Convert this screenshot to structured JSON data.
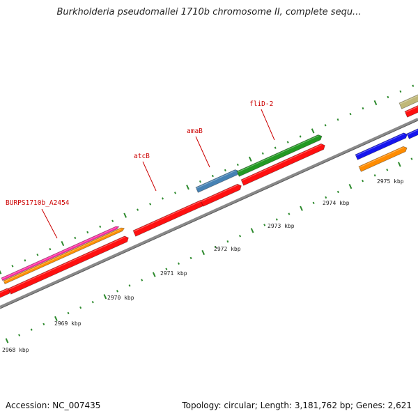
{
  "title": "Burkholderia pseudomallei 1710b chromosome II, complete sequ...",
  "footer": {
    "accession": "Accession: NC_007435",
    "summary": "Topology: circular; Length: 3,181,762 bp; Genes: 2,621"
  },
  "colors": {
    "backbone": "#8a8a8a",
    "tick": "#2d8a2d",
    "label_red": "#cc0000"
  },
  "kbp_labels": [
    {
      "text": "2968 kbp",
      "kbp": 2968
    },
    {
      "text": "2969 kbp",
      "kbp": 2969
    },
    {
      "text": "2970 kbp",
      "kbp": 2970
    },
    {
      "text": "2971 kbp",
      "kbp": 2971
    },
    {
      "text": "2972 kbp",
      "kbp": 2972
    },
    {
      "text": "2973 kbp",
      "kbp": 2973
    },
    {
      "text": "2974 kbp",
      "kbp": 2974
    },
    {
      "text": "2975 kbp",
      "kbp": 2975
    }
  ],
  "genes": [
    {
      "name": "BURPS1710b_A2454",
      "label": "BURPS1710b_A2454"
    },
    {
      "name": "atcB",
      "label": "atcB"
    },
    {
      "name": "amaB",
      "label": "amaB"
    },
    {
      "name": "fliD-2",
      "label": "fliD-2"
    }
  ],
  "features": [
    {
      "color": "#ff1010",
      "track": "inner"
    },
    {
      "color": "#ff1010",
      "track": "inner"
    },
    {
      "color": "#ff1010",
      "track": "inner"
    },
    {
      "color": "#ff1010",
      "track": "inner"
    },
    {
      "color": "#ff1010",
      "track": "inner"
    },
    {
      "color": "#ff1010",
      "track": "inner"
    },
    {
      "color": "#ff9000",
      "track": "outer"
    },
    {
      "color": "#ff2aa0",
      "track": "outer"
    },
    {
      "color": "#4682b4",
      "track": "outer"
    },
    {
      "color": "#229922",
      "track": "outer"
    },
    {
      "color": "#1515ee",
      "track": "outer"
    },
    {
      "color": "#ff8c00",
      "track": "outer"
    },
    {
      "color": "#c0b878",
      "track": "outer"
    }
  ]
}
